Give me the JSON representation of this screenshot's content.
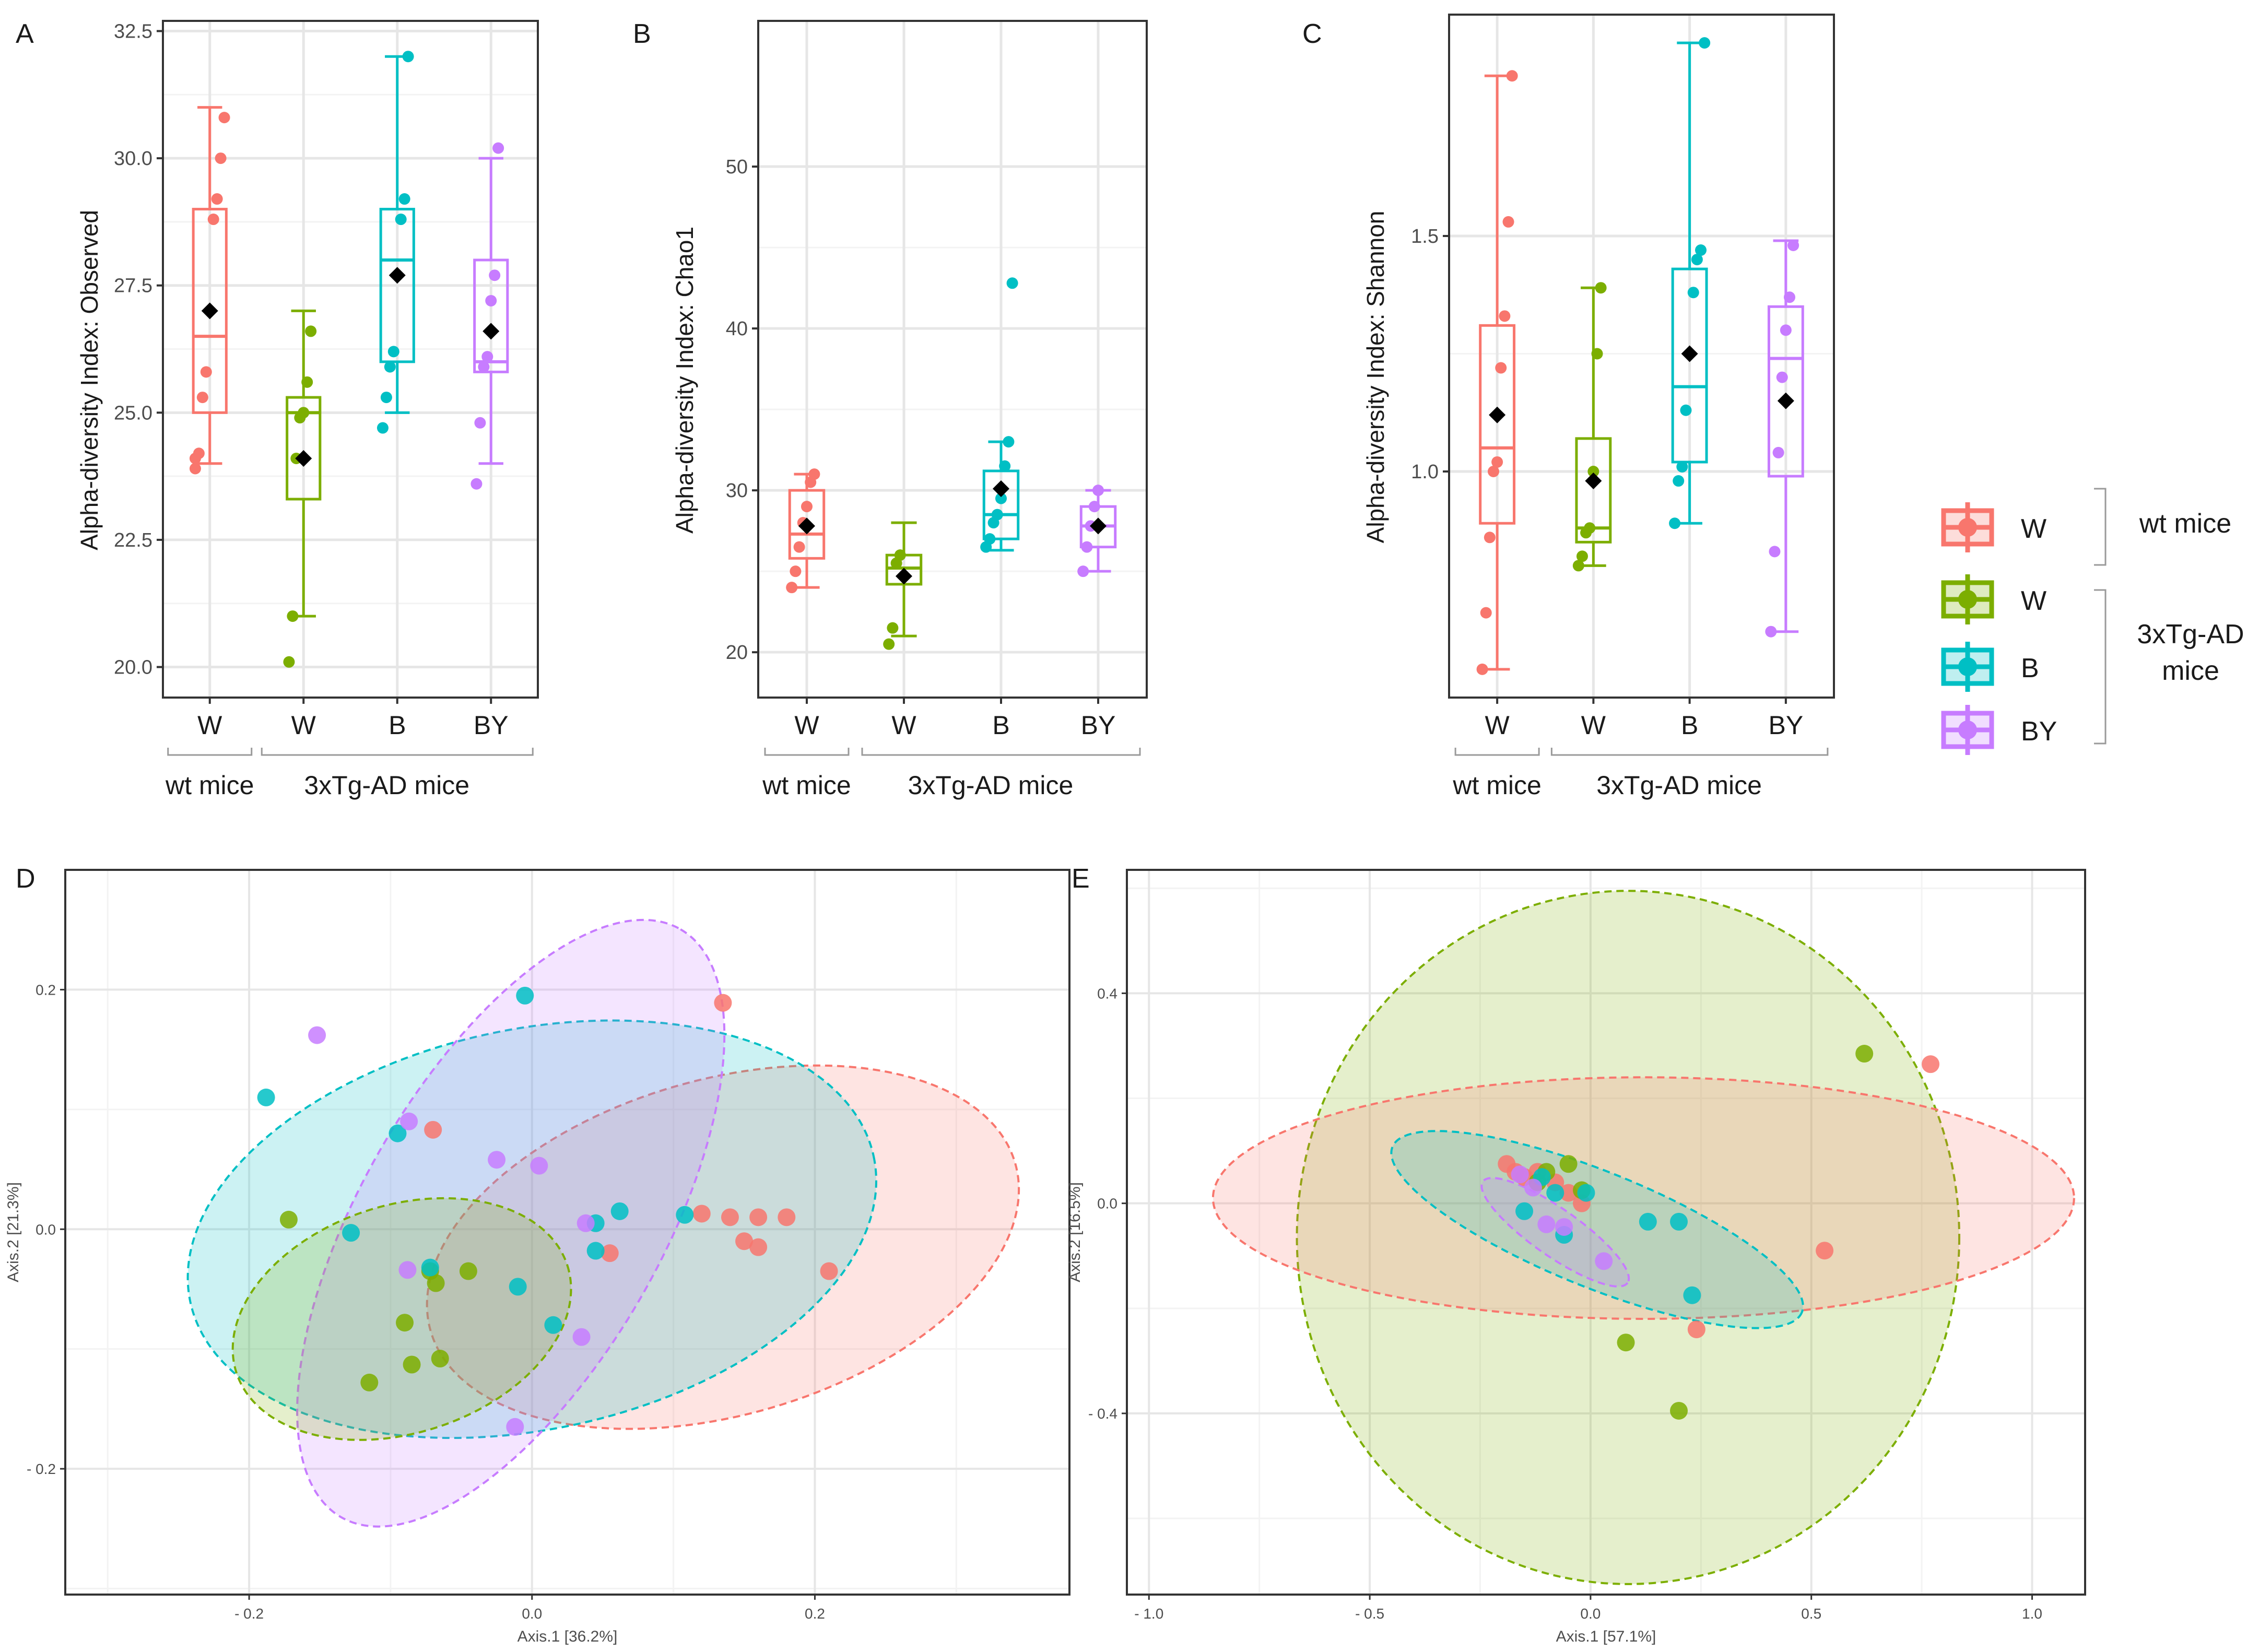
{
  "figure": {
    "group_caption_wt": "wt mice",
    "group_caption_tg": "3xTg-AD  mice"
  },
  "colors": {
    "wt_W": "#F8766D",
    "tg_W": "#7CAE00",
    "tg_B": "#00BFC4",
    "tg_BY": "#C77CFF",
    "mean_marker": "#000000",
    "grid_major": "#E6E6E6",
    "grid_minor": "#F3F3F3"
  },
  "legend": {
    "entries": [
      {
        "key": "wt_W",
        "label": "W"
      },
      {
        "key": "tg_W",
        "label": "W"
      },
      {
        "key": "tg_B",
        "label": "B"
      },
      {
        "key": "tg_BY",
        "label": "BY"
      }
    ],
    "bracket_wt": "wt mice",
    "bracket_tg_line1": "3xTg-AD",
    "bracket_tg_line2": "mice"
  },
  "chart_data": [
    {
      "panel": "A",
      "type": "box",
      "ylabel": "Alpha-diversity Index: Observed",
      "xlabel": "",
      "categories": [
        "W",
        "W",
        "B",
        "BY"
      ],
      "series_keys": [
        "wt_W",
        "tg_W",
        "tg_B",
        "tg_BY"
      ],
      "ylim": [
        19.4,
        32.7
      ],
      "yticks": [
        20.0,
        22.5,
        25.0,
        27.5,
        30.0,
        32.5
      ],
      "ytick_labels": [
        "20.0",
        "22.5",
        "25.0",
        "27.5",
        "30.0",
        "32.5"
      ],
      "boxes": [
        {
          "min": 24.0,
          "q1": 25.0,
          "median": 26.5,
          "q3": 29.0,
          "max": 31.0,
          "mean": 27.0
        },
        {
          "min": 21.0,
          "q1": 23.3,
          "median": 25.0,
          "q3": 25.3,
          "max": 27.0,
          "mean": 24.1
        },
        {
          "min": 25.0,
          "q1": 26.0,
          "median": 28.0,
          "q3": 29.0,
          "max": 32.0,
          "mean": 27.7
        },
        {
          "min": 24.0,
          "q1": 25.8,
          "median": 26.0,
          "q3": 28.0,
          "max": 30.0,
          "mean": 26.6
        }
      ],
      "points": [
        [
          24.1,
          24.2,
          25.3,
          25.8,
          27.0,
          28.8,
          29.2,
          30.0,
          30.8,
          23.9
        ],
        [
          20.1,
          21.0,
          24.1,
          24.9,
          25.0,
          25.6,
          26.6
        ],
        [
          24.7,
          25.3,
          25.9,
          26.2,
          27.7,
          28.8,
          29.2,
          32.0
        ],
        [
          23.6,
          24.8,
          25.9,
          26.1,
          27.2,
          27.7,
          30.2
        ]
      ]
    },
    {
      "panel": "B",
      "type": "box",
      "ylabel": "Alpha-diversity Index: Chao1",
      "xlabel": "",
      "categories": [
        "W",
        "W",
        "B",
        "BY"
      ],
      "series_keys": [
        "wt_W",
        "tg_W",
        "tg_B",
        "tg_BY"
      ],
      "ylim": [
        17.2,
        59
      ],
      "yticks": [
        20,
        30,
        40,
        50
      ],
      "ytick_labels": [
        "20",
        "30",
        "40",
        "50"
      ],
      "boxes": [
        {
          "min": 24,
          "q1": 25.8,
          "median": 27.3,
          "q3": 30.0,
          "max": 31,
          "mean": 27.8
        },
        {
          "min": 21,
          "q1": 24.2,
          "median": 25.2,
          "q3": 26.0,
          "max": 28,
          "mean": 24.7
        },
        {
          "min": 26.3,
          "q1": 27.0,
          "median": 28.5,
          "q3": 31.2,
          "max": 33,
          "mean": 30.1
        },
        {
          "min": 25,
          "q1": 26.5,
          "median": 27.8,
          "q3": 29.0,
          "max": 30,
          "mean": 27.8
        }
      ],
      "points": [
        [
          24.0,
          25.0,
          26.5,
          28.0,
          29.0,
          30.5,
          31.0
        ],
        [
          20.5,
          21.5,
          25.5,
          26.0
        ],
        [
          26.5,
          27.0,
          28.0,
          28.5,
          29.5,
          31.5,
          33.0,
          42.8
        ],
        [
          25.0,
          26.5,
          27.8,
          29.0,
          30.0
        ]
      ]
    },
    {
      "panel": "C",
      "type": "box",
      "ylabel": "Alpha-diversity Index: Shannon",
      "xlabel": "",
      "categories": [
        "W",
        "W",
        "B",
        "BY"
      ],
      "series_keys": [
        "wt_W",
        "tg_W",
        "tg_B",
        "tg_BY"
      ],
      "ylim": [
        0.52,
        1.97
      ],
      "yticks": [
        1.0,
        1.5
      ],
      "ytick_labels": [
        "1.0",
        "1.5"
      ],
      "boxes": [
        {
          "min": 0.58,
          "q1": 0.89,
          "median": 1.05,
          "q3": 1.31,
          "max": 1.84,
          "mean": 1.12
        },
        {
          "min": 0.8,
          "q1": 0.85,
          "median": 0.88,
          "q3": 1.07,
          "max": 1.39,
          "mean": 0.98
        },
        {
          "min": 0.89,
          "q1": 1.02,
          "median": 1.18,
          "q3": 1.43,
          "max": 1.91,
          "mean": 1.25
        },
        {
          "min": 0.66,
          "q1": 0.99,
          "median": 1.24,
          "q3": 1.35,
          "max": 1.49,
          "mean": 1.15
        }
      ],
      "points": [
        [
          0.58,
          0.7,
          0.86,
          1.0,
          1.02,
          1.22,
          1.33,
          1.53,
          1.84
        ],
        [
          0.8,
          0.82,
          0.87,
          0.88,
          1.0,
          1.25,
          1.39
        ],
        [
          0.89,
          0.98,
          1.01,
          1.13,
          1.25,
          1.38,
          1.45,
          1.47,
          1.91
        ],
        [
          0.66,
          0.83,
          1.04,
          1.2,
          1.3,
          1.37,
          1.48
        ]
      ]
    },
    {
      "panel": "D",
      "type": "scatter",
      "xlabel": "Axis.1   [36.2%]",
      "ylabel": "Axis.2   [21.3%]",
      "xlim": [
        -0.33,
        0.38
      ],
      "ylim": [
        -0.305,
        0.3
      ],
      "xticks": [
        -0.2,
        0.0,
        0.2
      ],
      "xtick_labels": [
        "- 0.2",
        "0.0",
        "0.2"
      ],
      "yticks": [
        -0.2,
        0.0,
        0.2
      ],
      "ytick_labels": [
        "- 0.2",
        "0.0",
        "0.2"
      ],
      "ellipses": [
        {
          "key": "wt_W",
          "cx": 0.135,
          "cy": -0.015,
          "rx": 0.215,
          "ry": 0.14,
          "angle": 16
        },
        {
          "key": "tg_B",
          "cx": 0.0,
          "cy": 0.0,
          "rx": 0.247,
          "ry": 0.167,
          "angle": 12
        },
        {
          "key": "tg_BY",
          "cx": -0.015,
          "cy": 0.005,
          "rx": 0.24,
          "ry": 0.125,
          "angle": 60
        },
        {
          "key": "tg_W",
          "cx": -0.092,
          "cy": -0.075,
          "rx": 0.123,
          "ry": 0.095,
          "angle": 18
        }
      ],
      "series": [
        {
          "key": "wt_W",
          "points": [
            [
              0.135,
              0.189
            ],
            [
              0.12,
              0.013
            ],
            [
              0.14,
              0.01
            ],
            [
              0.16,
              0.01
            ],
            [
              0.18,
              0.01
            ],
            [
              0.15,
              -0.01
            ],
            [
              0.16,
              -0.015
            ],
            [
              0.21,
              -0.035
            ],
            [
              0.055,
              -0.02
            ],
            [
              -0.07,
              0.083
            ]
          ]
        },
        {
          "key": "tg_W",
          "points": [
            [
              -0.172,
              0.008
            ],
            [
              -0.115,
              -0.128
            ],
            [
              -0.085,
              -0.113
            ],
            [
              -0.065,
              -0.108
            ],
            [
              -0.09,
              -0.078
            ],
            [
              -0.068,
              -0.045
            ],
            [
              -0.045,
              -0.035
            ],
            [
              -0.072,
              -0.035
            ]
          ]
        },
        {
          "key": "tg_B",
          "points": [
            [
              -0.188,
              0.11
            ],
            [
              -0.128,
              -0.003
            ],
            [
              -0.095,
              0.08
            ],
            [
              -0.072,
              -0.032
            ],
            [
              -0.005,
              0.195
            ],
            [
              -0.01,
              -0.048
            ],
            [
              0.015,
              -0.08
            ],
            [
              0.045,
              0.005
            ],
            [
              0.062,
              0.015
            ],
            [
              0.108,
              0.012
            ],
            [
              0.045,
              -0.018
            ]
          ]
        },
        {
          "key": "tg_BY",
          "points": [
            [
              -0.152,
              0.162
            ],
            [
              -0.087,
              0.09
            ],
            [
              -0.025,
              0.058
            ],
            [
              0.005,
              0.053
            ],
            [
              -0.088,
              -0.034
            ],
            [
              0.038,
              0.005
            ],
            [
              0.035,
              -0.09
            ],
            [
              -0.012,
              -0.165
            ]
          ]
        }
      ]
    },
    {
      "panel": "E",
      "type": "scatter",
      "xlabel": "Axis.1   [57.1%]",
      "ylabel": "Axis.2   [16.5%]",
      "xlim": [
        -1.05,
        1.12
      ],
      "ylim": [
        -0.745,
        0.635
      ],
      "xticks": [
        -1.0,
        -0.5,
        0.0,
        0.5,
        1.0
      ],
      "xtick_labels": [
        "- 1.0",
        "- 0.5",
        "0.0",
        "0.5",
        "1.0"
      ],
      "yticks": [
        -0.4,
        0.0,
        0.4
      ],
      "ytick_labels": [
        "- 0.4",
        "0.0",
        "0.4"
      ],
      "ellipses": [
        {
          "key": "tg_W",
          "cx": 0.085,
          "cy": -0.065,
          "rx": 0.75,
          "ry": 0.66,
          "angle": 0
        },
        {
          "key": "wt_W",
          "cx": 0.12,
          "cy": 0.01,
          "rx": 0.975,
          "ry": 0.23,
          "angle": 0
        },
        {
          "key": "tg_B",
          "cx": 0.015,
          "cy": -0.05,
          "rx": 0.5,
          "ry": 0.11,
          "angle": -22
        },
        {
          "key": "tg_BY",
          "cx": -0.08,
          "cy": -0.055,
          "rx": 0.2,
          "ry": 0.045,
          "angle": -35
        }
      ],
      "series": [
        {
          "key": "wt_W",
          "points": [
            [
              0.77,
              0.265
            ],
            [
              0.53,
              -0.09
            ],
            [
              0.24,
              -0.24
            ],
            [
              -0.19,
              0.075
            ],
            [
              -0.17,
              0.06
            ],
            [
              -0.12,
              0.06
            ],
            [
              -0.08,
              0.04
            ],
            [
              -0.05,
              0.02
            ],
            [
              -0.02,
              0.0
            ],
            [
              -0.15,
              0.05
            ]
          ]
        },
        {
          "key": "tg_W",
          "points": [
            [
              0.62,
              0.285
            ],
            [
              0.08,
              -0.265
            ],
            [
              0.2,
              -0.395
            ],
            [
              -0.1,
              0.06
            ],
            [
              -0.05,
              0.075
            ],
            [
              -0.02,
              0.025
            ],
            [
              -0.12,
              0.04
            ]
          ]
        },
        {
          "key": "tg_B",
          "points": [
            [
              0.13,
              -0.035
            ],
            [
              0.2,
              -0.035
            ],
            [
              0.23,
              -0.175
            ],
            [
              -0.06,
              -0.06
            ],
            [
              -0.01,
              0.02
            ],
            [
              -0.15,
              -0.015
            ],
            [
              -0.08,
              0.02
            ],
            [
              -0.11,
              0.05
            ]
          ]
        },
        {
          "key": "tg_BY",
          "points": [
            [
              -0.13,
              0.03
            ],
            [
              -0.1,
              -0.04
            ],
            [
              -0.06,
              -0.045
            ],
            [
              0.03,
              -0.11
            ],
            [
              -0.16,
              0.055
            ]
          ]
        }
      ]
    }
  ]
}
